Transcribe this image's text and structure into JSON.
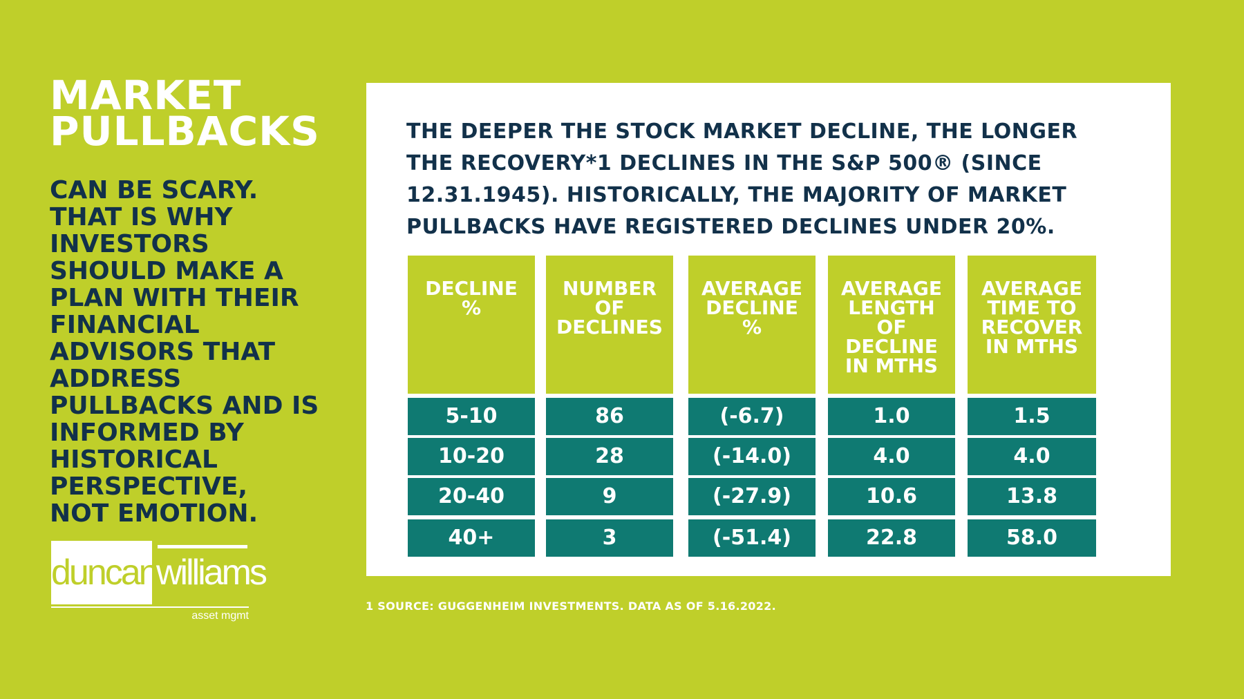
{
  "left": {
    "title_lines": [
      "MARKET",
      "PULLBACKS"
    ],
    "body_lines": [
      "CAN BE SCARY.",
      "THAT IS WHY",
      "INVESTORS",
      "SHOULD MAKE A",
      "PLAN WITH THEIR",
      "FINANCIAL",
      "ADVISORS THAT",
      "ADDRESS",
      "PULLBACKS AND IS",
      "INFORMED BY",
      "HISTORICAL",
      "PERSPECTIVE,",
      "NOT EMOTION."
    ]
  },
  "logo": {
    "word1": "duncan",
    "word2": "williams",
    "subtitle": "asset mgmt"
  },
  "panel": {
    "heading_lines": [
      "THE DEEPER THE STOCK MARKET DECLINE, THE LONGER",
      "THE RECOVERY*1 DECLINES IN THE S&P 500® (SINCE",
      "12.31.1945). HISTORICALLY, THE MAJORITY OF MARKET",
      "PULLBACKS HAVE REGISTERED DECLINES UNDER 20%."
    ]
  },
  "table": {
    "headers": [
      [
        "DECLINE",
        "%"
      ],
      [
        "NUMBER",
        "OF",
        "DECLINES"
      ],
      [
        "AVERAGE",
        "DECLINE",
        "%"
      ],
      [
        "AVERAGE",
        "LENGTH",
        "OF",
        "DECLINE",
        "IN MTHS"
      ],
      [
        "AVERAGE",
        "TIME TO",
        "RECOVER",
        "IN MTHS"
      ]
    ],
    "rows": [
      [
        "5-10",
        "86",
        "(-6.7)",
        "1.0",
        "1.5"
      ],
      [
        "10-20",
        "28",
        "(-14.0)",
        "4.0",
        "4.0"
      ],
      [
        "20-40",
        "9",
        "(-27.9)",
        "10.6",
        "13.8"
      ],
      [
        "40+",
        "3",
        "(-51.4)",
        "22.8",
        "58.0"
      ]
    ]
  },
  "footnote": "1 SOURCE: GUGGENHEIM INVESTMENTS. DATA AS OF 5.16.2022.",
  "colors": {
    "background": "#bfcf2a",
    "navy": "#12314a",
    "teal": "#0f7a72",
    "white": "#ffffff"
  }
}
